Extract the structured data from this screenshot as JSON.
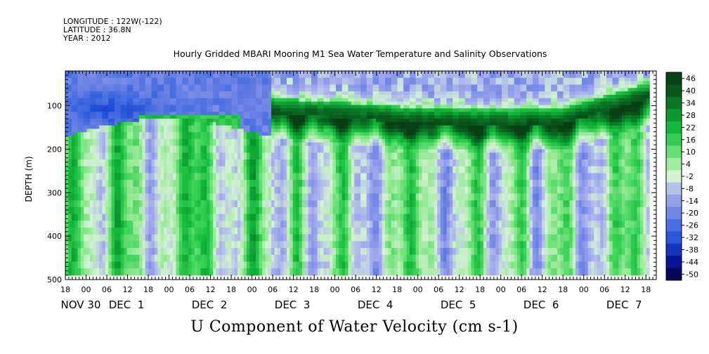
{
  "header": {
    "longitude": "LONGITUDE : 122W(-122)",
    "latitude": "LATITUDE : 36.8N",
    "year": "YEAR : 2012"
  },
  "chart_data": {
    "type": "heatmap",
    "title": "Hourly Gridded MBARI Mooring M1 Sea Water Temperature and Salinity Observations",
    "xlabel": "U Component of Water Velocity (cm s-1)",
    "ylabel": "DEPTH (m)",
    "y_axis": {
      "ticks": [
        100,
        200,
        300,
        400,
        500
      ],
      "range": [
        20,
        500
      ],
      "inverted": true
    },
    "x_axis": {
      "range_hours": [
        "2012-11-30T12:00",
        "2012-12-07T15:00"
      ],
      "hour_ticks": [
        "18",
        "00",
        "06",
        "12",
        "18",
        "00",
        "06",
        "12",
        "18",
        "00",
        "06",
        "12",
        "18",
        "00",
        "06",
        "12",
        "18",
        "00",
        "06",
        "12",
        "18",
        "00",
        "06",
        "12",
        "18",
        "00",
        "06",
        "12",
        "18",
        "00",
        "06",
        "12"
      ],
      "day_labels": [
        "NOV 30",
        "DEC  1",
        "DEC  2",
        "DEC  3",
        "DEC  4",
        "DEC  5",
        "DEC  6",
        "DEC  7"
      ]
    },
    "colorbar": {
      "labels": [
        "46",
        "40",
        "34",
        "28",
        "22",
        "16",
        "10",
        "4",
        "-2",
        "-8",
        "-14",
        "-20",
        "-26",
        "-32",
        "-38",
        "-44",
        "-50"
      ],
      "range": [
        -50,
        46
      ],
      "colors_low_to_high": [
        "#05055e",
        "#0a1aa8",
        "#1f4fd8",
        "#4a6fe0",
        "#7f8ee8",
        "#aab2ee",
        "#d2f2d2",
        "#8fe88f",
        "#3fd45a",
        "#12b83a",
        "#0a8a2a",
        "#0a5e1f",
        "#083f14"
      ]
    },
    "data_extent": {
      "start": "2012-11-30T12:00",
      "end": "2012-12-07T13:00",
      "depth_min": 20,
      "depth_max": 490
    },
    "features": [
      {
        "description": "negative (eastward shear) near-surface layer",
        "depth_range": [
          20,
          180
        ],
        "time_range": [
          "2012-11-30T12:00",
          "2012-12-03T00:00"
        ],
        "mean_value": -20
      },
      {
        "description": "strong positive jet",
        "depth_range": [
          80,
          170
        ],
        "time_range": [
          "2012-12-03T00:00",
          "2012-12-07T12:00"
        ],
        "mean_value": 34
      }
    ]
  }
}
